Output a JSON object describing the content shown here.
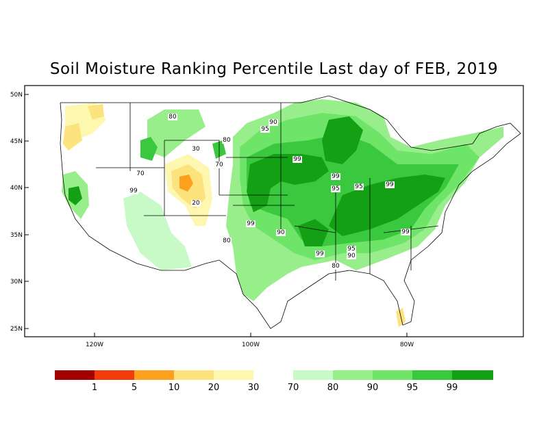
{
  "title": "Soil Moisture Ranking Percentile Last day of FEB, 2019",
  "map": {
    "lat_ticks": [
      "50N",
      "45N",
      "40N",
      "35N",
      "30N",
      "25N"
    ],
    "lon_ticks": [
      "120W",
      "100W",
      "80W"
    ],
    "contour_labels": [
      "80",
      "90",
      "95",
      "99",
      "30",
      "80",
      "70",
      "99",
      "70",
      "20",
      "99",
      "95",
      "95",
      "99",
      "99",
      "90",
      "80",
      "99",
      "99",
      "95",
      "90",
      "80"
    ]
  },
  "legend": {
    "dry": [
      {
        "color": "#a50000"
      },
      {
        "color": "#f03c0a"
      },
      {
        "color": "#fca01e"
      },
      {
        "color": "#fde37e"
      },
      {
        "color": "#fdf7b0"
      }
    ],
    "dry_labels": [
      "1",
      "5",
      "10",
      "20",
      "30"
    ],
    "wet": [
      {
        "color": "#c8fac8"
      },
      {
        "color": "#98ee8a"
      },
      {
        "color": "#6ee468"
      },
      {
        "color": "#3ac83e"
      },
      {
        "color": "#14a014"
      }
    ],
    "wet_labels": [
      "70",
      "80",
      "90",
      "95",
      "99"
    ]
  }
}
